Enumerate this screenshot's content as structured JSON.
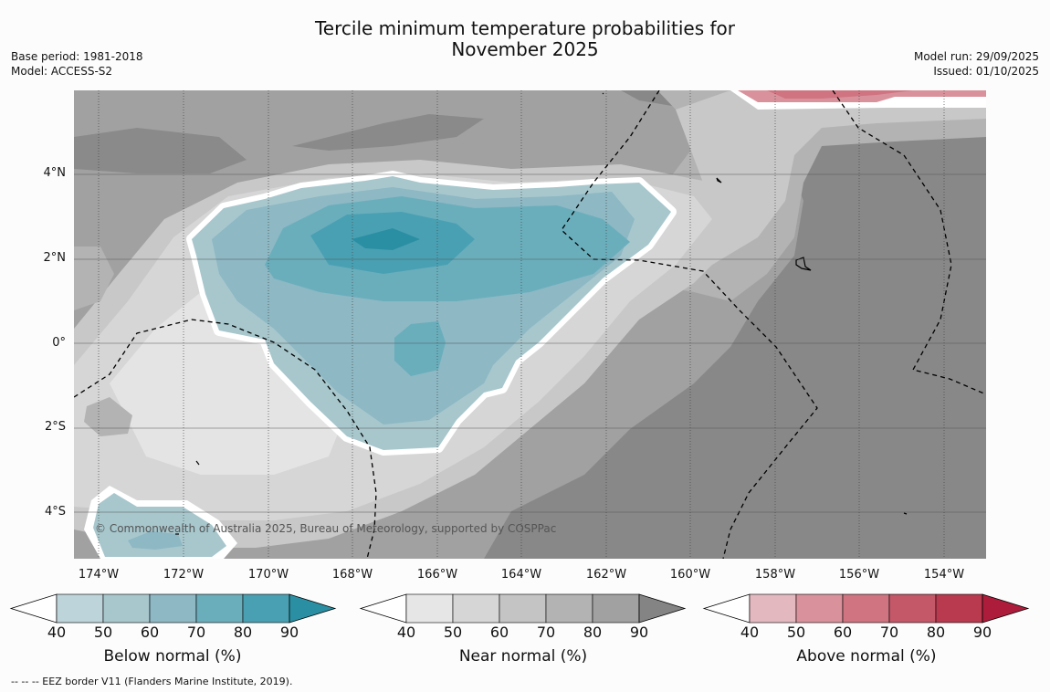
{
  "title_line1": "Tercile minimum temperature probabilities for",
  "title_line2": "November 2025",
  "base_period": "Base period: 1981-2018",
  "model": "Model: ACCESS-S2",
  "model_run": "Model run: 29/09/2025",
  "issued": "Issued: 01/10/2025",
  "lat_ticks": [
    "4°N",
    "2°N",
    "0°",
    "2°S",
    "4°S"
  ],
  "lon_ticks": [
    "174°W",
    "172°W",
    "170°W",
    "168°W",
    "166°W",
    "164°W",
    "162°W",
    "160°W",
    "158°W",
    "156°W",
    "154°W"
  ],
  "copyright": "© Commonwealth of Australia 2025, Bureau of Meteorology, supported by COSPPac",
  "footer": "--  --  -- EEZ border V11 (Flanders Marine Institute, 2019).",
  "colorbars": [
    {
      "title": "Below normal (%)",
      "labels": [
        "40",
        "50",
        "60",
        "70",
        "80",
        "90"
      ],
      "colors": [
        "#ffffff",
        "#bdd4da",
        "#a7c7cd",
        "#8db8c4",
        "#6aaebc",
        "#4aa0b3",
        "#2b8fa3"
      ]
    },
    {
      "title": "Near normal (%)",
      "labels": [
        "40",
        "50",
        "60",
        "70",
        "80",
        "90"
      ],
      "colors": [
        "#ffffff",
        "#e6e6e6",
        "#d6d6d6",
        "#c4c4c4",
        "#b3b3b3",
        "#a1a1a1",
        "#848484"
      ]
    },
    {
      "title": "Above normal (%)",
      "labels": [
        "40",
        "50",
        "60",
        "70",
        "80",
        "90"
      ],
      "colors": [
        "#ffffff",
        "#e3b8bf",
        "#d9929c",
        "#cf7480",
        "#c45768",
        "#b9394f",
        "#ad1d3b"
      ]
    }
  ]
}
